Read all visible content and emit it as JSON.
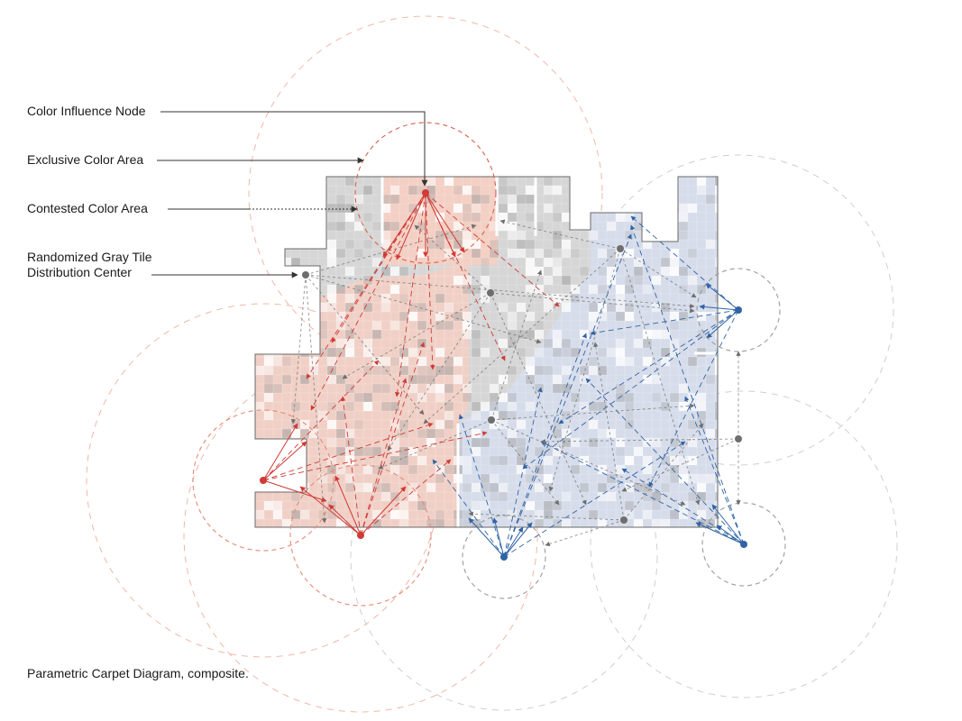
{
  "legend": {
    "color_influence_node": "Color Influence Node",
    "exclusive_color_area": "Exclusive Color Area",
    "contested_color_area": "Contested Color Area",
    "gray_tile_center_line1": "Randomized Gray Tile",
    "gray_tile_center_line2": "Distribution Center"
  },
  "caption": "Parametric Carpet Diagram, composite.",
  "colors": {
    "red": "#d13a35",
    "blue": "#2f63a6",
    "gray_node": "#6e6e6e",
    "red_zone": "#f3cfc4",
    "blue_zone": "#d6dcea",
    "gray_zone": "#d6d6d6",
    "outline": "#6a6a6a"
  }
}
